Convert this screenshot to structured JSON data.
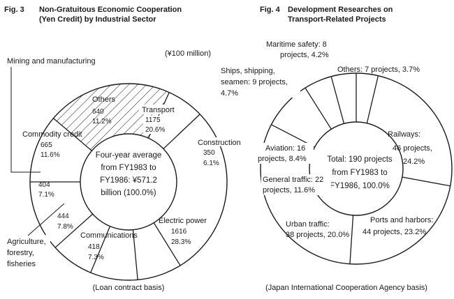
{
  "charts": [
    {
      "fig_number": "Fig. 3",
      "title_lines": [
        "Non-Gratuitous Economic Cooperation",
        "(Yen Credit) by Industrial Sector"
      ],
      "unit_note": "(¥100 million)",
      "center_lines": [
        "Four-year average",
        "from FY1983 to",
        "FY1986: ¥571.2",
        "billion (100.0%)"
      ],
      "footer": "(Loan contract basis)",
      "chart_data": {
        "type": "pie",
        "start_angle_deg": 180,
        "direction": "clockwise",
        "slices": [
          {
            "name": "Others",
            "value": 640,
            "percent": "11.2%",
            "hatched": false
          },
          {
            "name": "Transport",
            "value": 1175,
            "percent": "20.6%",
            "hatched": true
          },
          {
            "name": "Construction",
            "value": 350,
            "percent": "6.1%",
            "hatched": false
          },
          {
            "name": "Electric power",
            "value": 1616,
            "percent": "28.3%",
            "hatched": false
          },
          {
            "name": "Communications",
            "value": 418,
            "percent": "7.3%",
            "hatched": false
          },
          {
            "name": "Agriculture, forestry, fisheries",
            "value": 444,
            "percent": "7.8%",
            "hatched": false
          },
          {
            "name": "Mining and manufacturing",
            "value": 404,
            "percent": "7.1%",
            "hatched": false
          },
          {
            "name": "Commodity credit",
            "value": 665,
            "percent": "11.6%",
            "hatched": false
          }
        ]
      },
      "slice_labels": [
        {
          "lines": [
            "Others"
          ],
          "value": "640",
          "percent": "11.2%"
        },
        {
          "lines": [
            "Transport"
          ],
          "value": "1175",
          "percent": "20.6%"
        },
        {
          "lines": [
            "Construction"
          ],
          "value": "350",
          "percent": "6.1%"
        },
        {
          "lines": [
            "Electric power"
          ],
          "value": "1616",
          "percent": "28.3%"
        },
        {
          "lines": [
            "Communications"
          ],
          "value": "418",
          "percent": "7.3%"
        },
        {
          "lines": [
            "Agriculture,",
            "forestry,",
            "fisheries"
          ],
          "value": "444",
          "percent": "7.8%"
        },
        {
          "lines": [
            "Mining and manufacturing"
          ],
          "value": "404",
          "percent": "7.1%"
        },
        {
          "lines": [
            "Commodity credit"
          ],
          "value": "665",
          "percent": "11.6%"
        }
      ]
    },
    {
      "fig_number": "Fig. 4",
      "title_lines": [
        "Development Researches on",
        "Transport-Related Projects"
      ],
      "center_lines": [
        "Total: 190 projects",
        "from FY1983 to",
        "FY1986, 100.0%"
      ],
      "footer": "(Japan International Cooperation Agency basis)",
      "chart_data": {
        "type": "pie",
        "start_angle_deg": 90,
        "direction": "clockwise",
        "slices": [
          {
            "name": "Others",
            "projects": 7,
            "percent": "3.7%"
          },
          {
            "name": "Railways",
            "projects": 46,
            "percent": "24.2%"
          },
          {
            "name": "Ports and harbors",
            "projects": 44,
            "percent": "23.2%"
          },
          {
            "name": "Urban traffic",
            "projects": 38,
            "percent": "20.0%"
          },
          {
            "name": "General traffic",
            "projects": 22,
            "percent": "11.6%"
          },
          {
            "name": "Aviation",
            "projects": 16,
            "percent": "8.4%"
          },
          {
            "name": "Ships, shipping, seamen",
            "projects": 9,
            "percent": "4.7%"
          },
          {
            "name": "Maritime safety",
            "projects": 8,
            "percent": "4.2%"
          }
        ]
      },
      "slice_labels": [
        {
          "lines": [
            "Others: 7 projects, 3.7%"
          ]
        },
        {
          "lines": [
            "Railways:",
            "46 projects,",
            "24.2%"
          ]
        },
        {
          "lines": [
            "Ports and harbors:",
            "44 projects, 23.2%"
          ]
        },
        {
          "lines": [
            "Urban traffic:",
            "38 projects, 20.0%"
          ]
        },
        {
          "lines": [
            "General traffic: 22",
            "projects, 11.6%"
          ]
        },
        {
          "lines": [
            "Aviation: 16",
            "projects, 8.4%"
          ]
        },
        {
          "lines": [
            "Ships, shipping,",
            "seamen: 9 projects,",
            "4.7%"
          ]
        },
        {
          "lines": [
            "Maritime safety: 8",
            "projects, 4.2%"
          ]
        }
      ]
    }
  ]
}
